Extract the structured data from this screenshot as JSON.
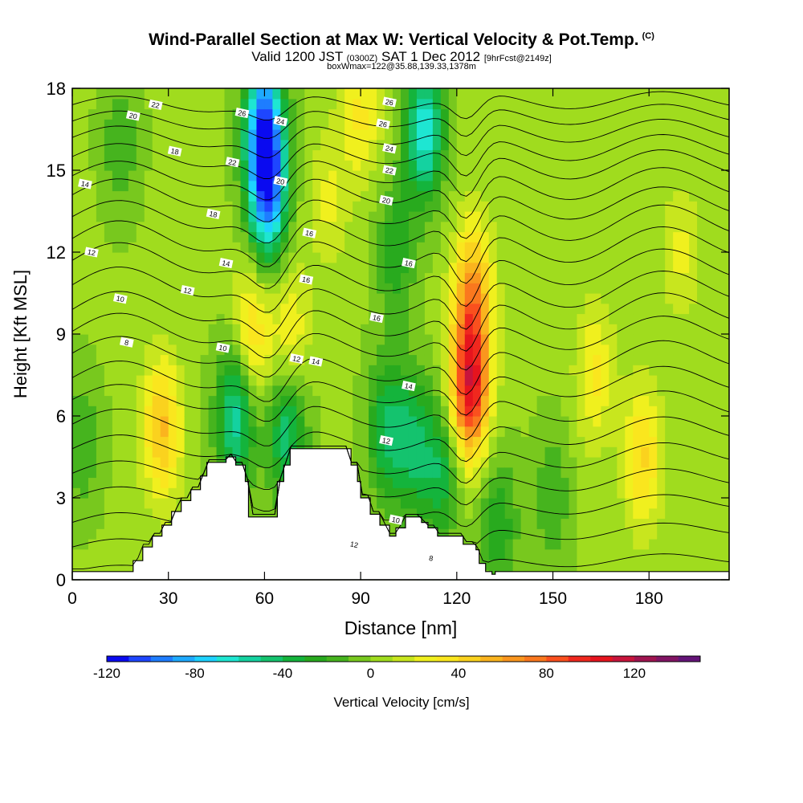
{
  "titles": {
    "main": "Wind-Parallel Section at Max W: Vertical Velocity & Pot.Temp.",
    "copyright": "(C)",
    "valid_prefix": "Valid 1200 JST",
    "valid_utc": "(0300Z)",
    "valid_date": "SAT 1 Dec 2012",
    "forecast_info": "[9hrFcst@2149z]",
    "box_info": "boxWmax=122@35.88,139.33,1378m"
  },
  "chart_data": {
    "type": "heatmap",
    "xlabel": "Distance [nm]",
    "ylabel": "Height [Kft MSL]",
    "xlim": [
      0,
      205
    ],
    "ylim": [
      0,
      18
    ],
    "x_ticks": [
      "0",
      "30",
      "60",
      "90",
      "120",
      "150",
      "180"
    ],
    "y_ticks": [
      "0",
      "3",
      "6",
      "9",
      "12",
      "15",
      "18"
    ],
    "colorbar": {
      "label": "Vertical Velocity [cm/s]",
      "min": -120,
      "max": 150,
      "step": 10,
      "tick_labels": [
        "-120",
        "-80",
        "-40",
        "0",
        "40",
        "80",
        "120"
      ],
      "colors": [
        "#0a0af0",
        "#1e46ff",
        "#1e7dff",
        "#1eaaff",
        "#1ed2ff",
        "#1ee6d2",
        "#14d2a0",
        "#14c36e",
        "#14b43c",
        "#28aa1e",
        "#46b41e",
        "#78c81e",
        "#a0dc1e",
        "#c8e61e",
        "#f0f01e",
        "#fae61e",
        "#fad21e",
        "#fab41e",
        "#fa961e",
        "#fa781e",
        "#fa501e",
        "#f0281e",
        "#e6141e",
        "#c8143c",
        "#a01450",
        "#821464",
        "#641478"
      ]
    },
    "vertical_velocity_features": [
      {
        "x": 28,
        "y": 5.5,
        "w_cms": 50
      },
      {
        "x": 60,
        "y": 16.5,
        "w_cms": -100
      },
      {
        "x": 61,
        "y": 14.0,
        "w_cms": -80
      },
      {
        "x": 51,
        "y": 6.0,
        "w_cms": -60
      },
      {
        "x": 67,
        "y": 5.5,
        "w_cms": -50
      },
      {
        "x": 68,
        "y": 9.0,
        "w_cms": 30
      },
      {
        "x": 56,
        "y": 9.0,
        "w_cms": 40
      },
      {
        "x": 80,
        "y": 14.0,
        "w_cms": 20
      },
      {
        "x": 98,
        "y": 5.5,
        "w_cms": -40
      },
      {
        "x": 110,
        "y": 16.5,
        "w_cms": -70
      },
      {
        "x": 106,
        "y": 5.0,
        "w_cms": -40
      },
      {
        "x": 101,
        "y": 12.0,
        "w_cms": -30
      },
      {
        "x": 124,
        "y": 7.0,
        "w_cms": 100
      },
      {
        "x": 125,
        "y": 10.5,
        "w_cms": 60
      },
      {
        "x": 115,
        "y": 4.0,
        "w_cms": -40
      },
      {
        "x": 133,
        "y": 2.0,
        "w_cms": -30
      },
      {
        "x": 163,
        "y": 7.5,
        "w_cms": 30
      },
      {
        "x": 178,
        "y": 4.5,
        "w_cms": 40
      },
      {
        "x": 90,
        "y": 17.0,
        "w_cms": 30
      },
      {
        "x": 3,
        "y": 5.0,
        "w_cms": -20
      },
      {
        "x": 15,
        "y": 16.0,
        "w_cms": -20
      },
      {
        "x": 150,
        "y": 3.0,
        "w_cms": -20
      },
      {
        "x": 190,
        "y": 12.0,
        "w_cms": 20
      }
    ],
    "terrain_kft": {
      "x": [
        0,
        19,
        22,
        25,
        28,
        31,
        34,
        37,
        40,
        42,
        48,
        51,
        54,
        55,
        61,
        64,
        66,
        68,
        73,
        80,
        83,
        87,
        89,
        90,
        93,
        96,
        99,
        101,
        104,
        107,
        109,
        111,
        114,
        117,
        121,
        122,
        126,
        127,
        129,
        131,
        132,
        205
      ],
      "h": [
        0.3,
        0.7,
        1.2,
        1.6,
        2.0,
        2.5,
        2.9,
        3.3,
        3.8,
        4.3,
        4.5,
        4.2,
        3.6,
        2.3,
        2.3,
        3.6,
        4.2,
        4.8,
        4.8,
        4.8,
        4.8,
        4.2,
        3.6,
        3.0,
        2.4,
        2.0,
        1.6,
        1.9,
        2.3,
        2.3,
        2.1,
        1.9,
        1.6,
        1.6,
        1.6,
        1.3,
        1.1,
        0.6,
        0.3,
        0.2,
        0.3,
        0.3
      ]
    },
    "potential_temperature_contours": [
      {
        "y_left_kft": 0.3,
        "y_right_kft": 0.8,
        "bump": 0.4
      },
      {
        "y_left_kft": 1.2,
        "y_right_kft": 1.9,
        "bump": 0.5
      },
      {
        "y_left_kft": 2.1,
        "y_right_kft": 2.9,
        "bump": 0.6
      },
      {
        "y_left_kft": 3.0,
        "y_right_kft": 3.8,
        "bump": 0.7
      },
      {
        "y_left_kft": 3.9,
        "y_right_kft": 4.7,
        "bump": 0.8
      },
      {
        "y_left_kft": 4.8,
        "y_right_kft": 5.6,
        "bump": 0.9
      },
      {
        "y_left_kft": 5.7,
        "y_right_kft": 6.5,
        "bump": 1.0
      },
      {
        "y_left_kft": 6.6,
        "y_right_kft": 7.4,
        "bump": 1.0
      },
      {
        "y_left_kft": 7.4,
        "y_right_kft": 8.3,
        "bump": 1.1
      },
      {
        "y_left_kft": 8.3,
        "y_right_kft": 9.2,
        "bump": 1.1
      },
      {
        "y_left_kft": 9.1,
        "y_right_kft": 10.0,
        "bump": 1.2
      },
      {
        "y_left_kft": 9.9,
        "y_right_kft": 10.8,
        "bump": 1.2
      },
      {
        "y_left_kft": 10.8,
        "y_right_kft": 11.6,
        "bump": 1.2
      },
      {
        "y_left_kft": 11.7,
        "y_right_kft": 12.4,
        "bump": 1.2
      },
      {
        "y_left_kft": 12.5,
        "y_right_kft": 13.2,
        "bump": 1.2
      },
      {
        "y_left_kft": 13.3,
        "y_right_kft": 13.9,
        "bump": 1.1
      },
      {
        "y_left_kft": 14.1,
        "y_right_kft": 14.6,
        "bump": 1.1
      },
      {
        "y_left_kft": 14.8,
        "y_right_kft": 15.3,
        "bump": 1.0
      },
      {
        "y_left_kft": 15.5,
        "y_right_kft": 15.9,
        "bump": 0.9
      },
      {
        "y_left_kft": 16.2,
        "y_right_kft": 16.5,
        "bump": 0.8
      },
      {
        "y_left_kft": 16.8,
        "y_right_kft": 17.1,
        "bump": 0.7
      },
      {
        "y_left_kft": 17.4,
        "y_right_kft": 17.6,
        "bump": 0.6
      }
    ],
    "contour_labels": [
      {
        "text": "22",
        "x": 26,
        "y": 17.4
      },
      {
        "text": "20",
        "x": 19,
        "y": 17.0
      },
      {
        "text": "18",
        "x": 32,
        "y": 15.7
      },
      {
        "text": "14",
        "x": 4,
        "y": 14.5
      },
      {
        "text": "12",
        "x": 6,
        "y": 12.0
      },
      {
        "text": "10",
        "x": 15,
        "y": 10.3
      },
      {
        "text": "8",
        "x": 17,
        "y": 8.7
      },
      {
        "text": "26",
        "x": 53,
        "y": 17.1
      },
      {
        "text": "24",
        "x": 65,
        "y": 16.8
      },
      {
        "text": "22",
        "x": 50,
        "y": 15.3
      },
      {
        "text": "20",
        "x": 65,
        "y": 14.6
      },
      {
        "text": "18",
        "x": 44,
        "y": 13.4
      },
      {
        "text": "16",
        "x": 74,
        "y": 12.7
      },
      {
        "text": "14",
        "x": 48,
        "y": 11.6
      },
      {
        "text": "12",
        "x": 36,
        "y": 10.6
      },
      {
        "text": "10",
        "x": 47,
        "y": 8.5
      },
      {
        "text": "12",
        "x": 70,
        "y": 8.1
      },
      {
        "text": "14",
        "x": 76,
        "y": 8.0
      },
      {
        "text": "16",
        "x": 73,
        "y": 11.0
      },
      {
        "text": "26",
        "x": 99,
        "y": 17.5
      },
      {
        "text": "26",
        "x": 97,
        "y": 16.7
      },
      {
        "text": "24",
        "x": 99,
        "y": 15.8
      },
      {
        "text": "22",
        "x": 99,
        "y": 15.0
      },
      {
        "text": "20",
        "x": 98,
        "y": 13.9
      },
      {
        "text": "16",
        "x": 105,
        "y": 11.6
      },
      {
        "text": "16",
        "x": 95,
        "y": 9.6
      },
      {
        "text": "14",
        "x": 105,
        "y": 7.1
      },
      {
        "text": "12",
        "x": 98,
        "y": 5.1
      },
      {
        "text": "10",
        "x": 101,
        "y": 2.2
      },
      {
        "text": "8",
        "x": 112,
        "y": 0.8
      },
      {
        "text": "12",
        "x": 88,
        "y": 1.3
      }
    ]
  }
}
